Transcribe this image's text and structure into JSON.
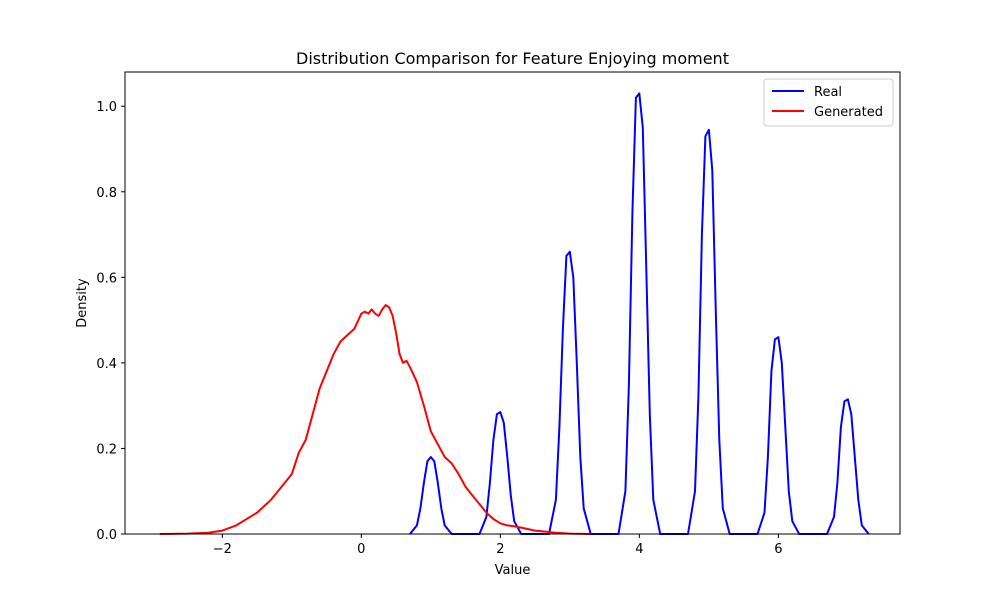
{
  "chart_data": {
    "type": "line",
    "title": "Distribution Comparison for Feature Enjoying moment",
    "xlabel": "Value",
    "ylabel": "Density",
    "xlim": [
      -3.4,
      7.75
    ],
    "ylim": [
      0,
      1.08
    ],
    "x_ticks": [
      -2,
      0,
      2,
      4,
      6
    ],
    "x_tick_labels": [
      "−2",
      "0",
      "2",
      "4",
      "6"
    ],
    "y_ticks": [
      0.0,
      0.2,
      0.4,
      0.6,
      0.8,
      1.0
    ],
    "y_tick_labels": [
      "0.0",
      "0.2",
      "0.4",
      "0.6",
      "0.8",
      "1.0"
    ],
    "grid": false,
    "legend_position": "top-right",
    "series": [
      {
        "name": "Real",
        "color": "#0000ff",
        "x": [
          0.7,
          0.8,
          0.85,
          0.9,
          0.95,
          1.0,
          1.05,
          1.1,
          1.15,
          1.2,
          1.3,
          1.5,
          1.7,
          1.8,
          1.85,
          1.9,
          1.95,
          2.0,
          2.05,
          2.1,
          2.15,
          2.2,
          2.3,
          2.5,
          2.7,
          2.8,
          2.85,
          2.9,
          2.95,
          3.0,
          3.05,
          3.1,
          3.15,
          3.2,
          3.3,
          3.5,
          3.7,
          3.8,
          3.85,
          3.9,
          3.95,
          4.0,
          4.05,
          4.1,
          4.15,
          4.2,
          4.3,
          4.5,
          4.7,
          4.8,
          4.85,
          4.9,
          4.95,
          5.0,
          5.05,
          5.1,
          5.15,
          5.2,
          5.3,
          5.5,
          5.7,
          5.8,
          5.85,
          5.9,
          5.95,
          6.0,
          6.05,
          6.1,
          6.15,
          6.2,
          6.3,
          6.5,
          6.7,
          6.8,
          6.85,
          6.9,
          6.95,
          7.0,
          7.05,
          7.1,
          7.15,
          7.2,
          7.3
        ],
        "y": [
          0.0,
          0.02,
          0.06,
          0.12,
          0.17,
          0.18,
          0.17,
          0.12,
          0.06,
          0.02,
          0.0,
          0.0,
          0.0,
          0.04,
          0.12,
          0.22,
          0.28,
          0.285,
          0.26,
          0.18,
          0.09,
          0.03,
          0.0,
          0.0,
          0.0,
          0.08,
          0.25,
          0.48,
          0.65,
          0.66,
          0.6,
          0.4,
          0.18,
          0.06,
          0.0,
          0.0,
          0.0,
          0.1,
          0.35,
          0.75,
          1.02,
          1.03,
          0.95,
          0.62,
          0.28,
          0.08,
          0.0,
          0.0,
          0.0,
          0.1,
          0.32,
          0.7,
          0.93,
          0.945,
          0.85,
          0.52,
          0.22,
          0.06,
          0.0,
          0.0,
          0.0,
          0.05,
          0.18,
          0.38,
          0.455,
          0.46,
          0.4,
          0.25,
          0.1,
          0.03,
          0.0,
          0.0,
          0.0,
          0.04,
          0.12,
          0.25,
          0.31,
          0.315,
          0.28,
          0.18,
          0.08,
          0.02,
          0.0
        ]
      },
      {
        "name": "Generated",
        "color": "#ff0000",
        "x": [
          -2.9,
          -2.5,
          -2.2,
          -2.0,
          -1.8,
          -1.5,
          -1.3,
          -1.0,
          -0.9,
          -0.8,
          -0.7,
          -0.6,
          -0.5,
          -0.4,
          -0.3,
          -0.2,
          -0.1,
          0.0,
          0.05,
          0.1,
          0.15,
          0.2,
          0.25,
          0.3,
          0.35,
          0.4,
          0.45,
          0.5,
          0.55,
          0.6,
          0.65,
          0.7,
          0.8,
          0.9,
          1.0,
          1.1,
          1.2,
          1.3,
          1.4,
          1.5,
          1.6,
          1.7,
          1.8,
          1.9,
          2.0,
          2.1,
          2.2,
          2.3,
          2.5,
          2.8,
          3.0,
          3.3
        ],
        "y": [
          0.0,
          0.001,
          0.003,
          0.008,
          0.02,
          0.05,
          0.08,
          0.14,
          0.19,
          0.22,
          0.28,
          0.34,
          0.38,
          0.42,
          0.45,
          0.465,
          0.48,
          0.515,
          0.52,
          0.515,
          0.525,
          0.515,
          0.51,
          0.525,
          0.535,
          0.53,
          0.51,
          0.47,
          0.42,
          0.4,
          0.405,
          0.39,
          0.355,
          0.3,
          0.24,
          0.21,
          0.18,
          0.165,
          0.14,
          0.11,
          0.09,
          0.07,
          0.05,
          0.035,
          0.025,
          0.02,
          0.018,
          0.015,
          0.008,
          0.003,
          0.001,
          0.0
        ]
      }
    ]
  }
}
